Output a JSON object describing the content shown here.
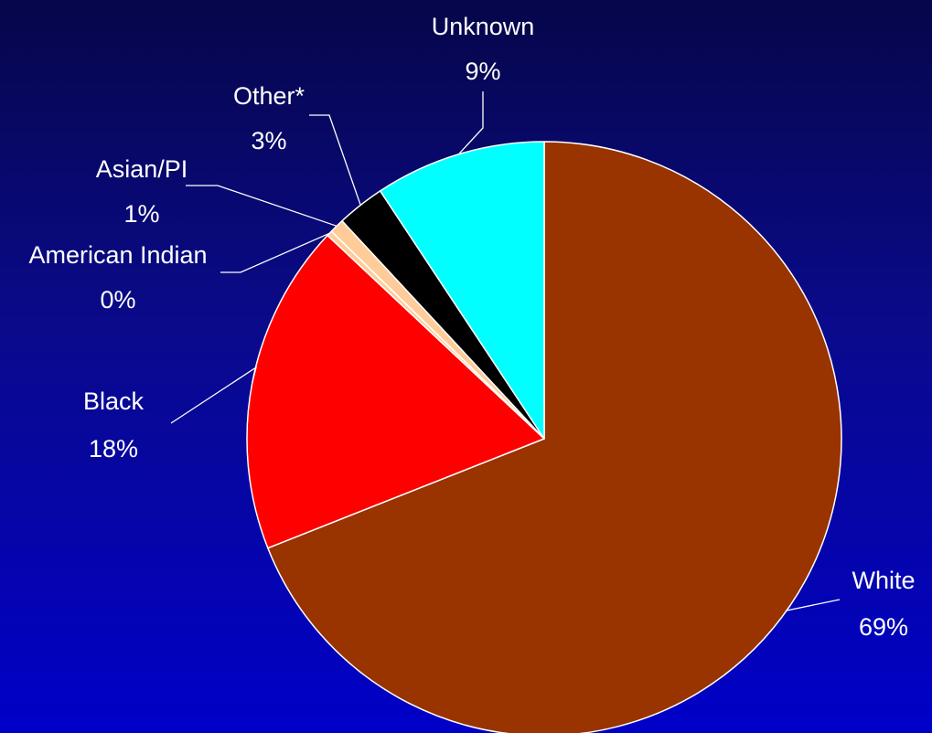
{
  "chart_data": {
    "type": "pie",
    "slices": [
      {
        "label": "White",
        "value": 69,
        "pct_label": "69%",
        "color": "#993300"
      },
      {
        "label": "Black",
        "value": 18,
        "pct_label": "18%",
        "color": "#ff0000"
      },
      {
        "label": "American Indian",
        "value": 0.3,
        "pct_label": "0%",
        "color": "#ffcc99"
      },
      {
        "label": "Asian/PI",
        "value": 0.8,
        "pct_label": "1%",
        "color": "#ffcc99"
      },
      {
        "label": "Other*",
        "value": 2.6,
        "pct_label": "3%",
        "color": "#000000"
      },
      {
        "label": "Unknown",
        "value": 9.3,
        "pct_label": "9%",
        "color": "#00ffff"
      }
    ],
    "start_angle_deg": 0,
    "direction": "clockwise",
    "slice_border_color": "#ffffff",
    "legend": "none"
  }
}
